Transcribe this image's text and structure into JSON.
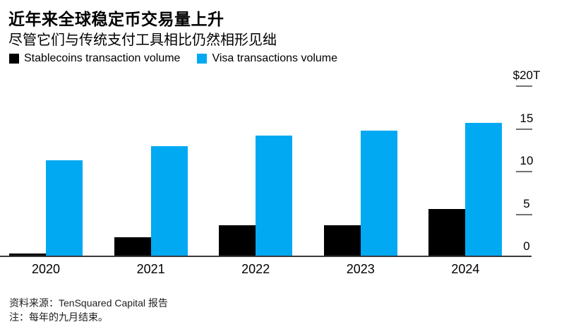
{
  "header": {
    "title": "近年来全球稳定币交易量上升",
    "subtitle": "尽管它们与传统支付工具相比仍然相形见绌"
  },
  "legend": {
    "items": [
      {
        "label": "Stablecoins transaction volume",
        "color": "#000000"
      },
      {
        "label": "Visa transactions volume",
        "color": "#00a9f2"
      }
    ]
  },
  "chart_data": {
    "type": "bar",
    "title": "近年来全球稳定币交易量上升",
    "subtitle": "尽管它们与传统支付工具相比仍然相形见绌",
    "categories": [
      "2020",
      "2021",
      "2022",
      "2023",
      "2024"
    ],
    "series": [
      {
        "name": "Stablecoins transaction volume",
        "key": "stablecoins",
        "color": "#000000",
        "values": [
          0.4,
          2.3,
          3.7,
          3.7,
          5.6
        ]
      },
      {
        "name": "Visa transactions volume",
        "key": "visa",
        "color": "#00a9f2",
        "values": [
          11.3,
          13.0,
          14.2,
          14.8,
          15.7
        ]
      }
    ],
    "unit": "$T",
    "xlabel": "",
    "ylabel": "",
    "ylim": [
      0,
      20
    ],
    "yticks": [
      {
        "value": 20,
        "label": "$20T"
      },
      {
        "value": 15,
        "label": "15"
      },
      {
        "value": 10,
        "label": "10"
      },
      {
        "value": 5,
        "label": "5"
      },
      {
        "value": 0,
        "label": "0"
      }
    ],
    "grid": false,
    "legend_position": "top-left",
    "y_axis_side": "right"
  },
  "footer": {
    "source": "资料来源：TenSquared Capital 报告",
    "note": "注：每年的九月结束。"
  }
}
